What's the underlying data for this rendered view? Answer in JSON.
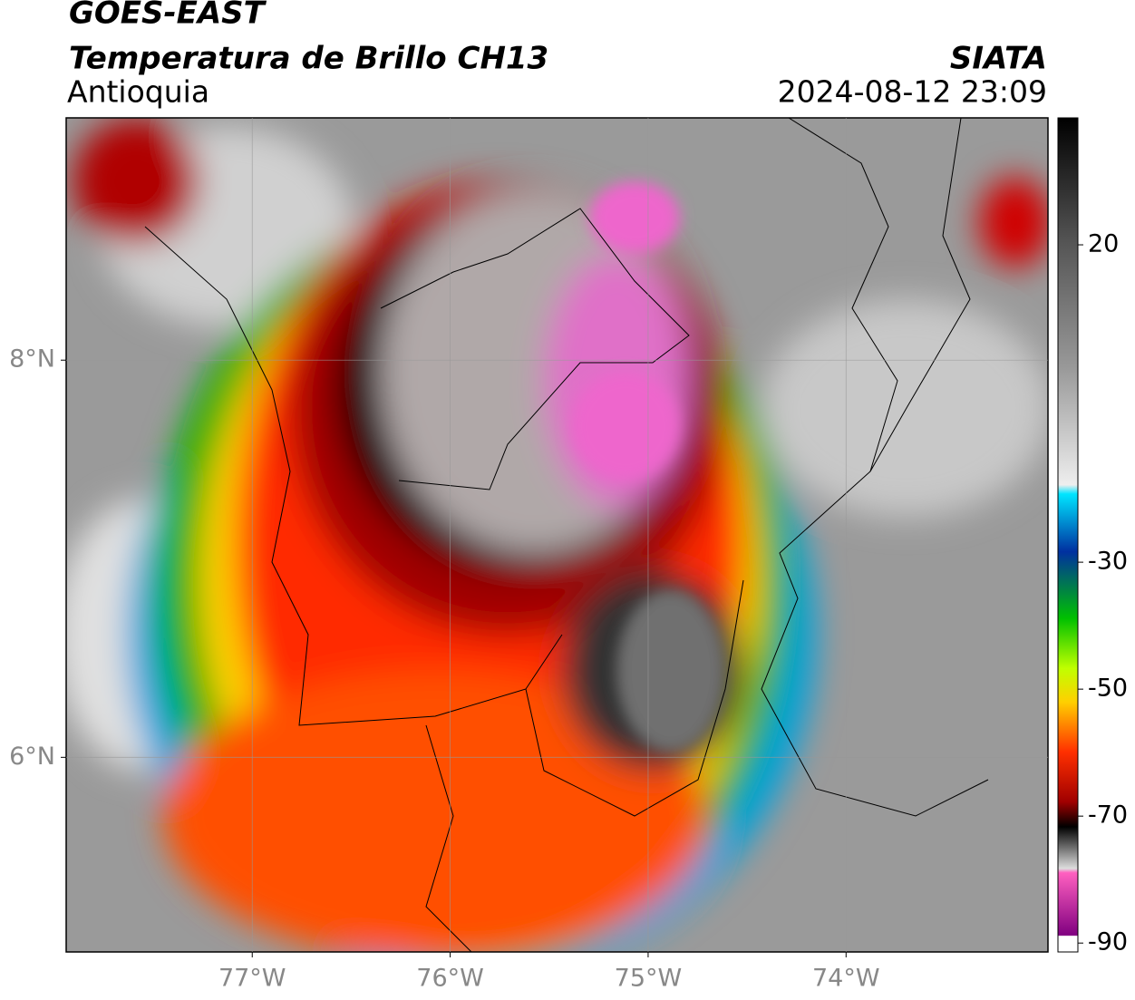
{
  "header": {
    "title": "GOES-EAST",
    "subtitle": "Temperatura de Brillo CH13",
    "region": "Antioquia",
    "source": "SIATA",
    "timestamp": "2024-08-12 23:09"
  },
  "map": {
    "xlim": [
      -77.94,
      -72.98
    ],
    "ylim": [
      5.02,
      9.22
    ],
    "xticks": [
      {
        "value": -77,
        "label": "77°W"
      },
      {
        "value": -76,
        "label": "76°W"
      },
      {
        "value": -75,
        "label": "75°W"
      },
      {
        "value": -74,
        "label": "74°W"
      }
    ],
    "yticks": [
      {
        "value": 8,
        "label": "8°N"
      },
      {
        "value": 6,
        "label": "6°N"
      }
    ]
  },
  "colorbar": {
    "lim": [
      -91.4,
      40
    ],
    "ticks": [
      20,
      -30,
      -50,
      -70,
      -90
    ]
  }
}
